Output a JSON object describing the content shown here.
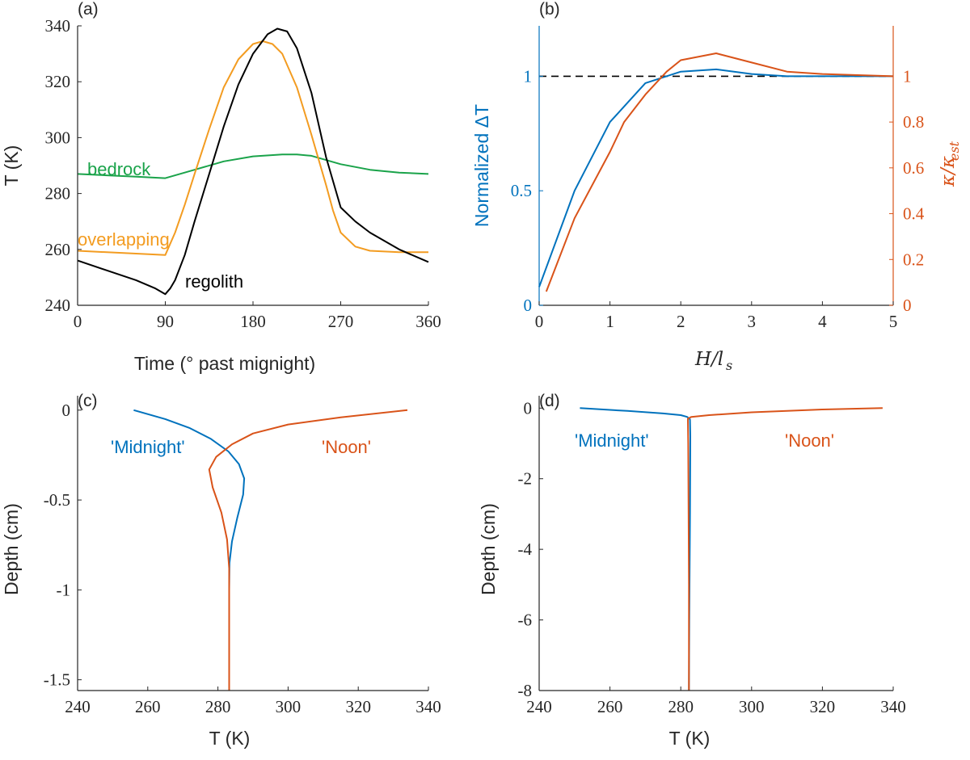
{
  "chart_data": [
    {
      "panel": "(a)",
      "type": "line",
      "xlabel": "Time (° past mignight)",
      "ylabel": "T (K)",
      "xlim": [
        0,
        360
      ],
      "ylim": [
        240,
        340
      ],
      "xticks": [
        0,
        90,
        180,
        270,
        360
      ],
      "yticks": [
        240,
        260,
        280,
        300,
        320,
        340
      ],
      "grid": false,
      "series": [
        {
          "name": "bedrock",
          "color": "#1aa34a",
          "x": [
            0,
            30,
            60,
            90,
            120,
            150,
            180,
            210,
            225,
            240,
            270,
            300,
            330,
            360
          ],
          "y": [
            287,
            286.5,
            286,
            285.5,
            288.5,
            291.5,
            293.3,
            294,
            294,
            293.5,
            290.5,
            288.5,
            287.5,
            287
          ]
        },
        {
          "name": "overlapping",
          "color": "#f39c21",
          "x": [
            0,
            30,
            60,
            90,
            100,
            110,
            120,
            135,
            150,
            165,
            180,
            190,
            200,
            210,
            225,
            240,
            255,
            262,
            270,
            285,
            300,
            330,
            360
          ],
          "y": [
            259.5,
            259,
            258.5,
            258,
            266,
            276,
            287,
            303,
            318,
            328,
            333.5,
            334.5,
            333.5,
            330,
            318,
            301,
            283,
            274,
            266,
            261,
            259.5,
            259,
            259
          ]
        },
        {
          "name": "regolith",
          "color": "#000000",
          "x": [
            0,
            30,
            60,
            80,
            90,
            95,
            100,
            110,
            120,
            135,
            150,
            165,
            180,
            195,
            205,
            215,
            225,
            240,
            255,
            270,
            285,
            300,
            330,
            360
          ],
          "y": [
            256,
            252.5,
            249,
            246,
            244,
            246,
            249,
            258,
            270,
            287,
            304,
            319,
            330,
            337,
            339,
            338,
            332,
            316,
            293,
            275,
            270,
            266,
            260,
            255.5
          ]
        }
      ],
      "annotations": [
        "bedrock",
        "overlapping",
        "regolith"
      ]
    },
    {
      "panel": "(b)",
      "type": "line",
      "xlabel": "H/l",
      "xlabel_sub": "s",
      "ylabel_left": "Normalized ΔT",
      "ylabel_right": "κ/κ",
      "ylabel_right_sub": "est",
      "xlim": [
        0,
        5
      ],
      "ylim_left": [
        0,
        1.22
      ],
      "ylim_right": [
        0,
        1.22
      ],
      "xticks": [
        0,
        1,
        2,
        3,
        4,
        5
      ],
      "yticks_left": [
        0,
        0.5,
        1
      ],
      "yticks_right": [
        0,
        0.2,
        0.4,
        0.6,
        0.8,
        1
      ],
      "grid": false,
      "reference_line": {
        "y": 1,
        "style": "dashed",
        "color": "#000000"
      },
      "series": [
        {
          "axis": "left",
          "color": "#0072bd",
          "x": [
            0,
            0.5,
            1,
            1.5,
            2,
            2.5,
            3,
            3.5,
            4,
            5
          ],
          "y": [
            0.08,
            0.5,
            0.8,
            0.97,
            1.02,
            1.03,
            1.01,
            1.0,
            1.0,
            1.0
          ]
        },
        {
          "axis": "right",
          "color": "#d95319",
          "x": [
            0.1,
            0.5,
            1,
            1.2,
            1.5,
            1.8,
            2,
            2.5,
            3,
            3.5,
            4,
            5
          ],
          "y": [
            0.06,
            0.38,
            0.67,
            0.8,
            0.92,
            1.02,
            1.07,
            1.1,
            1.06,
            1.02,
            1.01,
            1.0
          ]
        }
      ]
    },
    {
      "panel": "(c)",
      "type": "line",
      "xlabel": "T (K)",
      "ylabel": "Depth (cm)",
      "xlim": [
        240,
        340
      ],
      "ylim": [
        -1.56,
        0.08
      ],
      "xticks": [
        240,
        260,
        280,
        300,
        320,
        340
      ],
      "yticks": [
        0,
        -0.5,
        -1,
        -1.5
      ],
      "yticklabels": [
        "0",
        "-0.5",
        "-1",
        "-1.5"
      ],
      "grid": false,
      "series": [
        {
          "name": "'Midnight'",
          "color": "#0072bd",
          "x": [
            256,
            265,
            272,
            278,
            283,
            286,
            287.5,
            287.2,
            285.5,
            284,
            283.3,
            283.2,
            283.2
          ],
          "y": [
            0,
            -0.05,
            -0.1,
            -0.16,
            -0.23,
            -0.3,
            -0.38,
            -0.47,
            -0.6,
            -0.73,
            -0.85,
            -1.0,
            -1.56
          ]
        },
        {
          "name": "'Noon'",
          "color": "#d95319",
          "x": [
            334,
            315,
            300,
            290,
            284,
            279.5,
            277.5,
            278.5,
            281,
            282.6,
            283.2,
            283.2
          ],
          "y": [
            0,
            -0.04,
            -0.08,
            -0.13,
            -0.19,
            -0.26,
            -0.33,
            -0.43,
            -0.57,
            -0.72,
            -0.88,
            -1.56
          ]
        }
      ],
      "annotations": [
        "'Midnight'",
        "'Noon'"
      ]
    },
    {
      "panel": "(d)",
      "type": "line",
      "xlabel": "T (K)",
      "ylabel": "Depth (cm)",
      "xlim": [
        240,
        340
      ],
      "ylim": [
        -8,
        0.35
      ],
      "xticks": [
        240,
        260,
        280,
        300,
        320,
        340
      ],
      "yticks": [
        0,
        -2,
        -4,
        -6,
        -8
      ],
      "yticklabels": [
        "0",
        "-2",
        "-4",
        "-6",
        "-8"
      ],
      "grid": false,
      "series": [
        {
          "name": "'Midnight'",
          "color": "#0072bd",
          "x": [
            251.5,
            265,
            275,
            280,
            281.8,
            282.6,
            282.7,
            282.6,
            282.4,
            282.3
          ],
          "y": [
            0,
            -0.08,
            -0.15,
            -0.2,
            -0.25,
            -0.32,
            -0.8,
            -3,
            -6,
            -8
          ]
        },
        {
          "name": "'Noon'",
          "color": "#d95319",
          "x": [
            337,
            320,
            300,
            288,
            283,
            282,
            282.1,
            282.3,
            282.3
          ],
          "y": [
            0,
            -0.04,
            -0.12,
            -0.2,
            -0.25,
            -0.3,
            -1,
            -5,
            -8
          ]
        }
      ],
      "annotations": [
        "'Midnight'",
        "'Noon'"
      ]
    }
  ]
}
